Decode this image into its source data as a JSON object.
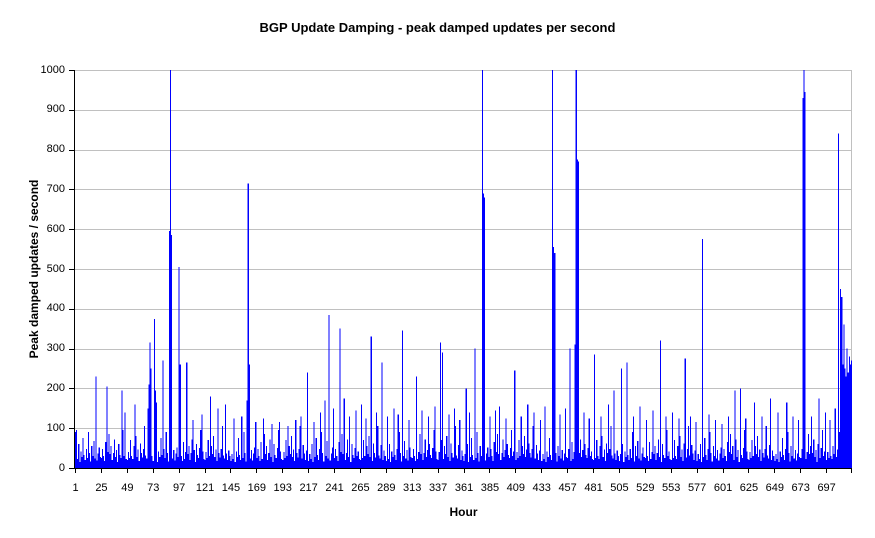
{
  "page": {
    "background": "#ffffff"
  },
  "chart_data": {
    "type": "bar",
    "title": "BGP Update Damping - peak damped updates per second",
    "xlabel": "Hour",
    "ylabel": "Peak damped updates / second",
    "ylim": [
      0,
      1000
    ],
    "y_ticks": [
      0,
      100,
      200,
      300,
      400,
      500,
      600,
      700,
      800,
      900,
      1000
    ],
    "x_ticks": [
      1,
      25,
      49,
      73,
      97,
      121,
      145,
      169,
      193,
      217,
      241,
      265,
      289,
      313,
      337,
      361,
      385,
      409,
      433,
      457,
      481,
      505,
      529,
      553,
      577,
      601,
      625,
      649,
      673,
      697
    ],
    "x_range": [
      1,
      720
    ],
    "x_tick_interval": 24,
    "grid": "horizontal",
    "legend": "none",
    "bar_color": "#0000ff",
    "gridline_color": "#c0c0c0",
    "axis_color": "#000000",
    "values": [
      90,
      95,
      22,
      60,
      15,
      42,
      28,
      75,
      33,
      20,
      48,
      25,
      90,
      38,
      16,
      55,
      30,
      68,
      24,
      230,
      19,
      36,
      52,
      28,
      25,
      48,
      30,
      18,
      65,
      205,
      40,
      85,
      35,
      55,
      20,
      38,
      72,
      28,
      45,
      15,
      60,
      33,
      25,
      195,
      95,
      30,
      140,
      22,
      20,
      40,
      25,
      70,
      30,
      22,
      55,
      160,
      80,
      28,
      46,
      18,
      62,
      38,
      26,
      48,
      105,
      32,
      24,
      150,
      210,
      315,
      250,
      30,
      18,
      375,
      195,
      165,
      15,
      42,
      28,
      75,
      33,
      270,
      48,
      25,
      90,
      38,
      16,
      595,
      1000,
      585,
      24,
      45,
      19,
      36,
      52,
      28,
      505,
      260,
      30,
      18,
      65,
      22,
      40,
      265,
      35,
      55,
      20,
      38,
      72,
      120,
      45,
      15,
      60,
      33,
      25,
      50,
      95,
      135,
      42,
      22,
      20,
      40,
      25,
      70,
      30,
      180,
      55,
      35,
      80,
      28,
      46,
      18,
      150,
      38,
      26,
      48,
      105,
      32,
      24,
      160,
      36,
      20,
      44,
      30,
      18,
      35,
      22,
      125,
      15,
      42,
      28,
      75,
      33,
      20,
      130,
      25,
      90,
      38,
      16,
      170,
      715,
      260,
      24,
      45,
      19,
      36,
      52,
      115,
      25,
      48,
      30,
      18,
      65,
      22,
      125,
      85,
      35,
      55,
      20,
      38,
      72,
      28,
      110,
      15,
      60,
      33,
      25,
      50,
      95,
      115,
      42,
      22,
      20,
      40,
      25,
      70,
      30,
      105,
      55,
      35,
      80,
      28,
      46,
      18,
      120,
      38,
      26,
      48,
      105,
      130,
      24,
      58,
      36,
      20,
      44,
      240,
      18,
      35,
      22,
      60,
      15,
      115,
      28,
      75,
      33,
      20,
      48,
      140,
      90,
      38,
      16,
      170,
      30,
      68,
      24,
      385,
      19,
      36,
      52,
      150,
      25,
      48,
      30,
      18,
      65,
      350,
      40,
      85,
      35,
      175,
      20,
      38,
      72,
      28,
      130,
      15,
      60,
      33,
      25,
      50,
      145,
      30,
      42,
      22,
      20,
      160,
      25,
      70,
      30,
      125,
      55,
      35,
      80,
      28,
      330,
      18,
      62,
      38,
      26,
      140,
      105,
      32,
      24,
      58,
      265,
      20,
      44,
      30,
      18,
      130,
      22,
      60,
      15,
      42,
      28,
      150,
      33,
      20,
      48,
      135,
      90,
      38,
      16,
      345,
      30,
      68,
      24,
      45,
      19,
      120,
      52,
      28,
      25,
      48,
      30,
      18,
      230,
      22,
      40,
      85,
      35,
      145,
      20,
      38,
      72,
      28,
      45,
      130,
      60,
      33,
      25,
      50,
      95,
      155,
      42,
      22,
      20,
      40,
      315,
      70,
      290,
      22,
      55,
      35,
      80,
      28,
      135,
      18,
      62,
      38,
      26,
      150,
      105,
      32,
      24,
      58,
      120,
      20,
      44,
      30,
      18,
      35,
      200,
      60,
      15,
      140,
      28,
      75,
      33,
      20,
      300,
      25,
      90,
      38,
      16,
      55,
      30,
      1000,
      690,
      680,
      19,
      36,
      52,
      28,
      130,
      48,
      30,
      18,
      65,
      145,
      40,
      85,
      35,
      155,
      20,
      38,
      72,
      28,
      45,
      125,
      60,
      33,
      25,
      50,
      95,
      30,
      42,
      245,
      20,
      40,
      25,
      70,
      30,
      130,
      55,
      35,
      80,
      28,
      46,
      160,
      62,
      38,
      26,
      48,
      105,
      140,
      24,
      58,
      36,
      20,
      44,
      120,
      18,
      35,
      22,
      155,
      15,
      42,
      28,
      75,
      33,
      20,
      1000,
      555,
      540,
      38,
      16,
      55,
      30,
      135,
      24,
      45,
      19,
      36,
      150,
      28,
      25,
      48,
      300,
      18,
      65,
      22,
      40,
      310,
      1000,
      775,
      770,
      38,
      72,
      28,
      45,
      140,
      60,
      33,
      25,
      50,
      125,
      30,
      42,
      22,
      20,
      285,
      25,
      70,
      30,
      22,
      55,
      130,
      80,
      28,
      46,
      18,
      62,
      38,
      160,
      48,
      105,
      32,
      24,
      195,
      36,
      20,
      44,
      30,
      18,
      35,
      250,
      60,
      15,
      42,
      28,
      265,
      33,
      20,
      48,
      25,
      90,
      130,
      16,
      55,
      30,
      68,
      24,
      155,
      19,
      36,
      52,
      28,
      25,
      120,
      30,
      18,
      65,
      22,
      40,
      145,
      35,
      55,
      20,
      38,
      72,
      28,
      320,
      15,
      60,
      33,
      25,
      130,
      95,
      30,
      42,
      22,
      20,
      140,
      25,
      70,
      30,
      22,
      55,
      125,
      80,
      28,
      46,
      18,
      62,
      275,
      26,
      48,
      105,
      32,
      130,
      58,
      36,
      20,
      44,
      115,
      18,
      35,
      22,
      60,
      15,
      575,
      28,
      75,
      33,
      20,
      48,
      135,
      90,
      38,
      16,
      55,
      30,
      120,
      24,
      45,
      19,
      36,
      52,
      110,
      25,
      48,
      30,
      18,
      65,
      130,
      40,
      85,
      35,
      55,
      20,
      195,
      72,
      28,
      45,
      15,
      200,
      33,
      25,
      50,
      95,
      125,
      42,
      22,
      20,
      40,
      25,
      70,
      30,
      165,
      55,
      35,
      80,
      28,
      46,
      18,
      130,
      38,
      26,
      48,
      105,
      32,
      24,
      58,
      175,
      20,
      44,
      30,
      18,
      35,
      22,
      140,
      15,
      42,
      28,
      75,
      33,
      20,
      48,
      165,
      90,
      38,
      16,
      55,
      30,
      130,
      24,
      45,
      19,
      36,
      120,
      28,
      25,
      48,
      930,
      1000,
      945,
      22,
      40,
      85,
      35,
      55,
      130,
      38,
      72,
      28,
      45,
      15,
      60,
      175,
      25,
      50,
      95,
      30,
      42,
      140,
      20,
      40,
      25,
      120,
      30,
      22,
      55,
      35,
      150,
      28,
      46,
      840,
      90,
      450,
      430,
      260,
      360,
      250,
      230,
      300,
      240,
      280,
      260,
      270
    ]
  }
}
